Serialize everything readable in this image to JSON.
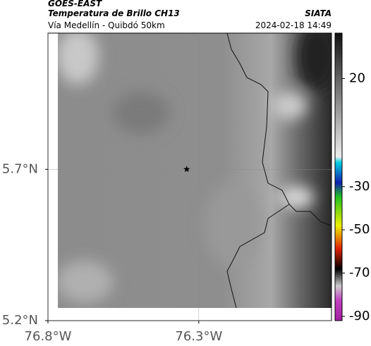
{
  "header": {
    "satellite": "GOES-EAST",
    "product": "Temperatura de Brillo CH13",
    "route": "Vía Medellín - Quibdó 50km",
    "source": "SIATA",
    "datetime": "2024-02-18 14:49"
  },
  "map": {
    "xlim": [
      -76.8,
      -75.86
    ],
    "ylim": [
      5.2,
      6.15
    ],
    "xticks": [
      {
        "value": -76.8,
        "label": "76.8°W"
      },
      {
        "value": -76.3,
        "label": "76.3°W"
      }
    ],
    "yticks": [
      {
        "value": 5.2,
        "label": "5.2°N"
      },
      {
        "value": 5.7,
        "label": "5.7°N"
      }
    ],
    "grid": true,
    "marker": {
      "lon": -76.34,
      "lat": 5.7
    }
  },
  "colorbar": {
    "lim": [
      -92,
      41
    ],
    "ticks": [
      20,
      -30,
      -50,
      -70,
      -90
    ]
  }
}
